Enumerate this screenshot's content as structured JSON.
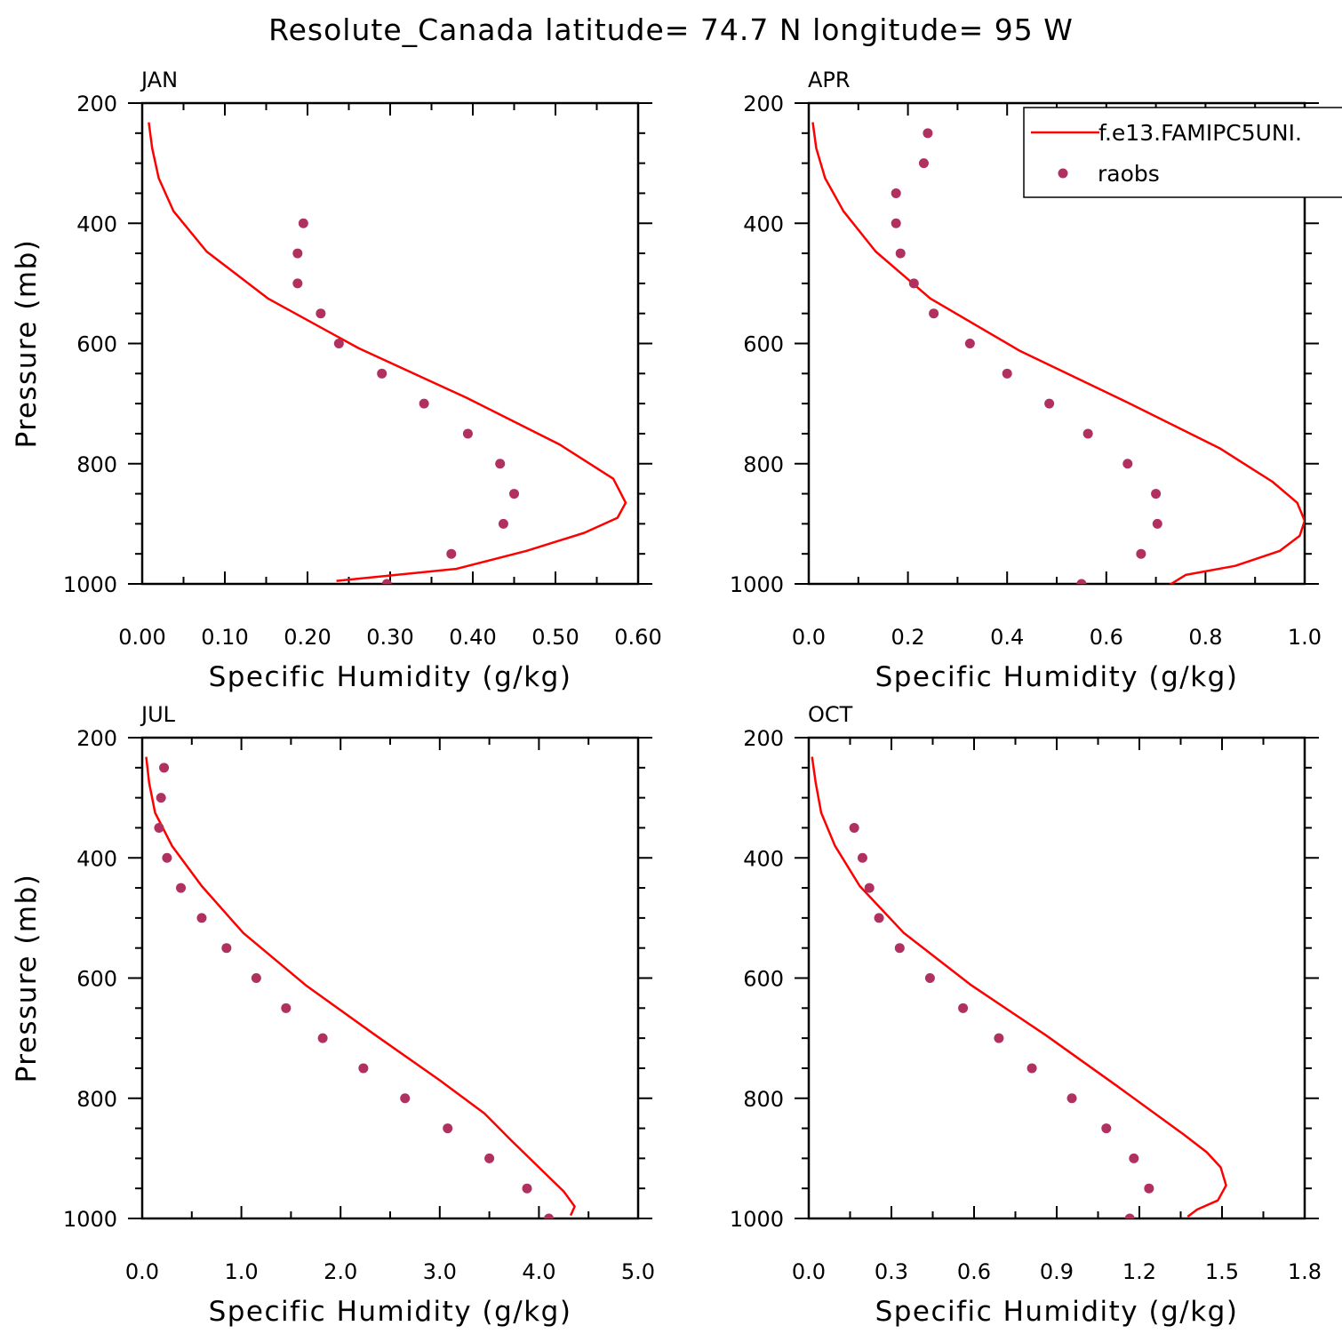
{
  "title": "Resolute_Canada  latitude= 74.7 N longitude= 95 W",
  "colors": {
    "model": "#ff0000",
    "obs": "#b03060",
    "frame": "#000000"
  },
  "legend": {
    "placement": "top-right",
    "entries": [
      {
        "label": "f.e13.FAMIPC5UNI.",
        "style": "line"
      },
      {
        "label": "raobs",
        "style": "marker"
      }
    ]
  },
  "chart_data": [
    {
      "type": "line",
      "panel": "JAN",
      "xlabel": "Specific Humidity (g/kg)",
      "ylabel": "Pressure (mb)",
      "xlim": [
        0,
        0.6
      ],
      "ylim": [
        1000,
        200
      ],
      "y_inverted": true,
      "xticks": [
        "0.00",
        "0.10",
        "0.20",
        "0.30",
        "0.40",
        "0.50",
        "0.60"
      ],
      "yticks": [
        "200",
        "400",
        "600",
        "800",
        "1000"
      ],
      "series": [
        {
          "name": "f.e13.FAMIPC5UNI.",
          "style": "line",
          "x": [
            0.008,
            0.012,
            0.02,
            0.038,
            0.078,
            0.152,
            0.262,
            0.392,
            0.505,
            0.57,
            0.585,
            0.575,
            0.535,
            0.465,
            0.38,
            0.235
          ],
          "y": [
            232,
            275,
            325,
            380,
            447,
            525,
            608,
            690,
            768,
            825,
            865,
            890,
            915,
            945,
            975,
            995
          ]
        },
        {
          "name": "raobs",
          "style": "marker",
          "x": [
            0.195,
            0.188,
            0.188,
            0.216,
            0.238,
            0.29,
            0.341,
            0.394,
            0.433,
            0.45,
            0.437,
            0.374,
            0.296
          ],
          "y": [
            400,
            450,
            500,
            550,
            600,
            650,
            700,
            750,
            800,
            850,
            900,
            950,
            1000
          ]
        }
      ]
    },
    {
      "type": "line",
      "panel": "APR",
      "xlabel": "Specific Humidity (g/kg)",
      "ylabel": "",
      "xlim": [
        0,
        1.0
      ],
      "ylim": [
        1000,
        200
      ],
      "y_inverted": true,
      "xticks": [
        "0.0",
        "0.2",
        "0.4",
        "0.6",
        "0.8",
        "1.0"
      ],
      "yticks": [
        "200",
        "400",
        "600",
        "800",
        "1000"
      ],
      "series": [
        {
          "name": "f.e13.FAMIPC5UNI.",
          "style": "line",
          "x": [
            0.008,
            0.015,
            0.033,
            0.07,
            0.135,
            0.245,
            0.425,
            0.635,
            0.83,
            0.935,
            0.985,
            1.0,
            0.99,
            0.95,
            0.86,
            0.76,
            0.725
          ],
          "y": [
            232,
            275,
            325,
            380,
            447,
            525,
            612,
            695,
            775,
            830,
            865,
            895,
            920,
            945,
            970,
            985,
            1003
          ]
        },
        {
          "name": "raobs",
          "style": "marker",
          "x": [
            0.24,
            0.232,
            0.176,
            0.176,
            0.185,
            0.212,
            0.252,
            0.325,
            0.4,
            0.485,
            0.563,
            0.643,
            0.7,
            0.703,
            0.67,
            0.55
          ],
          "y": [
            250,
            300,
            350,
            400,
            450,
            500,
            550,
            600,
            650,
            700,
            750,
            800,
            850,
            900,
            950,
            1000
          ]
        }
      ]
    },
    {
      "type": "line",
      "panel": "JUL",
      "xlabel": "Specific Humidity (g/kg)",
      "ylabel": "Pressure (mb)",
      "xlim": [
        0,
        5.0
      ],
      "ylim": [
        1000,
        200
      ],
      "y_inverted": true,
      "xticks": [
        "0.0",
        "1.0",
        "2.0",
        "3.0",
        "4.0",
        "5.0"
      ],
      "yticks": [
        "200",
        "400",
        "600",
        "800",
        "1000"
      ],
      "series": [
        {
          "name": "f.e13.FAMIPC5UNI.",
          "style": "line",
          "x": [
            0.04,
            0.07,
            0.13,
            0.3,
            0.6,
            1.02,
            1.65,
            2.35,
            3.0,
            3.45,
            3.72,
            4.0,
            4.25,
            4.36,
            4.32
          ],
          "y": [
            232,
            275,
            325,
            380,
            447,
            525,
            612,
            695,
            770,
            825,
            870,
            915,
            955,
            980,
            995
          ]
        },
        {
          "name": "raobs",
          "style": "marker",
          "x": [
            0.22,
            0.19,
            0.17,
            0.25,
            0.39,
            0.6,
            0.85,
            1.15,
            1.45,
            1.82,
            2.23,
            2.65,
            3.08,
            3.5,
            3.88,
            4.1
          ],
          "y": [
            250,
            300,
            350,
            400,
            450,
            500,
            550,
            600,
            650,
            700,
            750,
            800,
            850,
            900,
            950,
            1000
          ]
        }
      ]
    },
    {
      "type": "line",
      "panel": "OCT",
      "xlabel": "Specific Humidity (g/kg)",
      "ylabel": "",
      "xlim": [
        0,
        1.8
      ],
      "ylim": [
        1000,
        200
      ],
      "y_inverted": true,
      "xticks": [
        "0.0",
        "0.3",
        "0.6",
        "0.9",
        "1.2",
        "1.5",
        "1.8"
      ],
      "yticks": [
        "200",
        "400",
        "600",
        "800",
        "1000"
      ],
      "series": [
        {
          "name": "f.e13.FAMIPC5UNI.",
          "style": "line",
          "x": [
            0.012,
            0.025,
            0.045,
            0.095,
            0.185,
            0.345,
            0.59,
            0.86,
            1.12,
            1.36,
            1.445,
            1.495,
            1.515,
            1.485,
            1.41,
            1.375
          ],
          "y": [
            232,
            275,
            325,
            380,
            447,
            525,
            612,
            695,
            780,
            860,
            890,
            915,
            945,
            970,
            985,
            997
          ]
        },
        {
          "name": "raobs",
          "style": "marker",
          "x": [
            0.165,
            0.195,
            0.22,
            0.255,
            0.33,
            0.44,
            0.56,
            0.69,
            0.81,
            0.955,
            1.08,
            1.18,
            1.235,
            1.165
          ],
          "y": [
            350,
            400,
            450,
            500,
            550,
            600,
            650,
            700,
            750,
            800,
            850,
            900,
            950,
            1000
          ]
        }
      ]
    }
  ]
}
